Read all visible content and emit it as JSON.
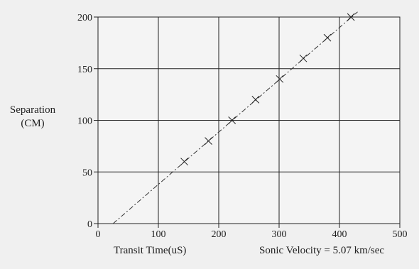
{
  "chart_data": {
    "type": "scatter",
    "xlabel": "Transit Time(uS)",
    "ylabel_line1": "Separation",
    "ylabel_line2": "(CM)",
    "xlim": [
      0,
      500
    ],
    "ylim": [
      0,
      200
    ],
    "xticks": [
      0,
      100,
      200,
      300,
      400,
      500
    ],
    "yticks": [
      0,
      50,
      100,
      150,
      200
    ],
    "grid": true,
    "annotation": "Sonic Velocity = 5.07 km/sec",
    "points": [
      {
        "x": 143,
        "y": 60
      },
      {
        "x": 183,
        "y": 80
      },
      {
        "x": 222,
        "y": 100
      },
      {
        "x": 261,
        "y": 120
      },
      {
        "x": 301,
        "y": 140
      },
      {
        "x": 340,
        "y": 160
      },
      {
        "x": 380,
        "y": 180
      },
      {
        "x": 419,
        "y": 200
      }
    ],
    "fit_line": {
      "style": "dash-dot",
      "x": [
        25,
        430
      ],
      "y": [
        0,
        205
      ]
    }
  }
}
